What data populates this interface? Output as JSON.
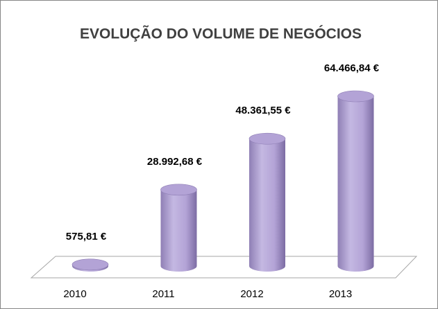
{
  "chart_data": {
    "type": "bar3d",
    "title": "EVOLUÇÃO DO VOLUME DE NEGÓCIOS",
    "categories": [
      "2010",
      "2011",
      "2012",
      "2013"
    ],
    "values": [
      575.81,
      28992.68,
      48361.55,
      64466.84
    ],
    "value_labels": [
      "575,81 €",
      "28.992,68 €",
      "48.361,55 €",
      "64.466,84 €"
    ],
    "color": "#b3a3d6"
  }
}
